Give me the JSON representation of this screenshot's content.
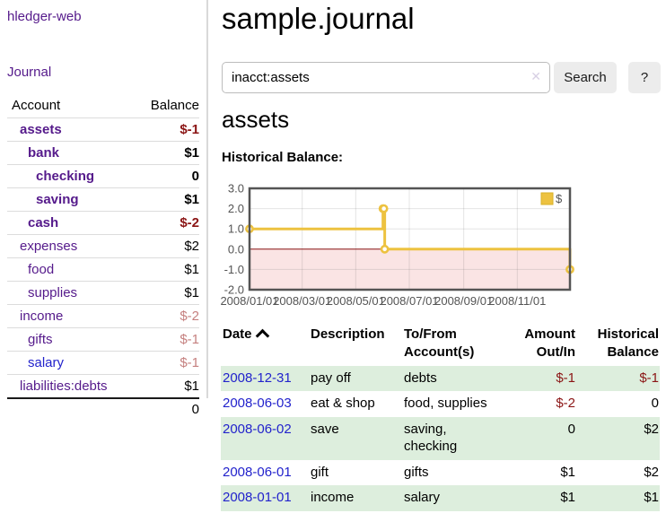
{
  "app": {
    "brand": "hledger-web"
  },
  "colors": {
    "link_purple": "#551A8B",
    "link_blue": "#2222CC",
    "negative_red": "#8B1515",
    "negative_dimmed": "#C5807F",
    "row_green": "#DDEEDD",
    "button_bg": "#ECECEC",
    "chart_line_yellow": "#EDC240",
    "chart_border": "#545454",
    "chart_negative_fill": "#FAE4E4",
    "chart_zero_line": "#871111"
  },
  "icons": {
    "clear_search_icon": "✕",
    "sort_ascending_icon": "chevron-up",
    "legend_swatch": "yellow-square"
  },
  "sidebar": {
    "nav_journal": "Journal",
    "accounts": {
      "headers": {
        "account": "Account",
        "balance": "Balance"
      },
      "rows": [
        {
          "name": "assets",
          "depth": 1,
          "bold": true,
          "balance": "$-1"
        },
        {
          "name": "bank",
          "depth": 2,
          "bold": true,
          "balance": "$1"
        },
        {
          "name": "checking",
          "depth": 3,
          "bold": true,
          "balance": "0"
        },
        {
          "name": "saving",
          "depth": 3,
          "bold": true,
          "balance": "$1"
        },
        {
          "name": "cash",
          "depth": 2,
          "bold": true,
          "balance": "$-2"
        },
        {
          "name": "expenses",
          "depth": 1,
          "bold": false,
          "balance": "$2"
        },
        {
          "name": "food",
          "depth": 2,
          "bold": false,
          "balance": "$1"
        },
        {
          "name": "supplies",
          "depth": 2,
          "bold": false,
          "balance": "$1"
        },
        {
          "name": "income",
          "depth": 1,
          "bold": false,
          "dim": true,
          "balance": "$-2"
        },
        {
          "name": "gifts",
          "depth": 2,
          "bold": false,
          "dim": true,
          "balance": "$-1"
        },
        {
          "name": "salary",
          "depth": 2,
          "bold": false,
          "dim": true,
          "link_color": "#2222CC",
          "balance": "$-1"
        },
        {
          "name": "liabilities:debts",
          "depth": 1,
          "bold": false,
          "balance": "$1"
        }
      ],
      "total": "0"
    }
  },
  "main": {
    "title": "sample.journal",
    "search": {
      "value": "inacct:assets",
      "button_label": "Search",
      "help_label": "?"
    },
    "section_title": "assets",
    "chart_heading": "Historical Balance:"
  },
  "chart_data": {
    "type": "line",
    "title": "Historical Balance:",
    "step": true,
    "series": [
      {
        "name": "$",
        "color": "#EDC240",
        "points": [
          [
            "2008-01-01",
            1
          ],
          [
            "2008-06-01",
            2
          ],
          [
            "2008-06-02",
            2
          ],
          [
            "2008-06-03",
            0
          ],
          [
            "2008-12-31",
            -1
          ]
        ]
      }
    ],
    "xlim": [
      "2008-01-01",
      "2008-12-31"
    ],
    "ylim": [
      -2,
      3
    ],
    "yticks": [
      3.0,
      2.0,
      1.0,
      0.0,
      -1.0,
      -2.0
    ],
    "xticks": [
      {
        "date": "2008-01-01",
        "label": "2008/01/01"
      },
      {
        "date": "2008-03-01",
        "label": "2008/03/01"
      },
      {
        "date": "2008-05-01",
        "label": "2008/05/01"
      },
      {
        "date": "2008-07-01",
        "label": "2008/07/01"
      },
      {
        "date": "2008-09-01",
        "label": "2008/09/01"
      },
      {
        "date": "2008-11-01",
        "label": "2008/11/01"
      }
    ],
    "grid": true,
    "legend": {
      "label": "$",
      "position": "top-right"
    },
    "negative_region_fill": "#FAE4E4",
    "zero_line_color": "#871111"
  },
  "register": {
    "headers": [
      {
        "label": "Date",
        "sorted": "asc"
      },
      {
        "label": "Description"
      },
      {
        "label": "To/From\nAccount(s)"
      },
      {
        "label": "Amount\nOut/In",
        "align": "right"
      },
      {
        "label": "Historical\nBalance",
        "align": "right"
      }
    ],
    "rows": [
      {
        "date": "2008-12-31",
        "description": "pay off",
        "accounts": "debts",
        "amount": "$-1",
        "balance": "$-1"
      },
      {
        "date": "2008-06-03",
        "description": "eat & shop",
        "accounts": "food, supplies",
        "amount": "$-2",
        "balance": "0"
      },
      {
        "date": "2008-06-02",
        "description": "save",
        "accounts": "saving, checking",
        "amount": "0",
        "balance": "$2"
      },
      {
        "date": "2008-06-01",
        "description": "gift",
        "accounts": "gifts",
        "amount": "$1",
        "balance": "$2"
      },
      {
        "date": "2008-01-01",
        "description": "income",
        "accounts": "salary",
        "amount": "$1",
        "balance": "$1"
      }
    ]
  }
}
